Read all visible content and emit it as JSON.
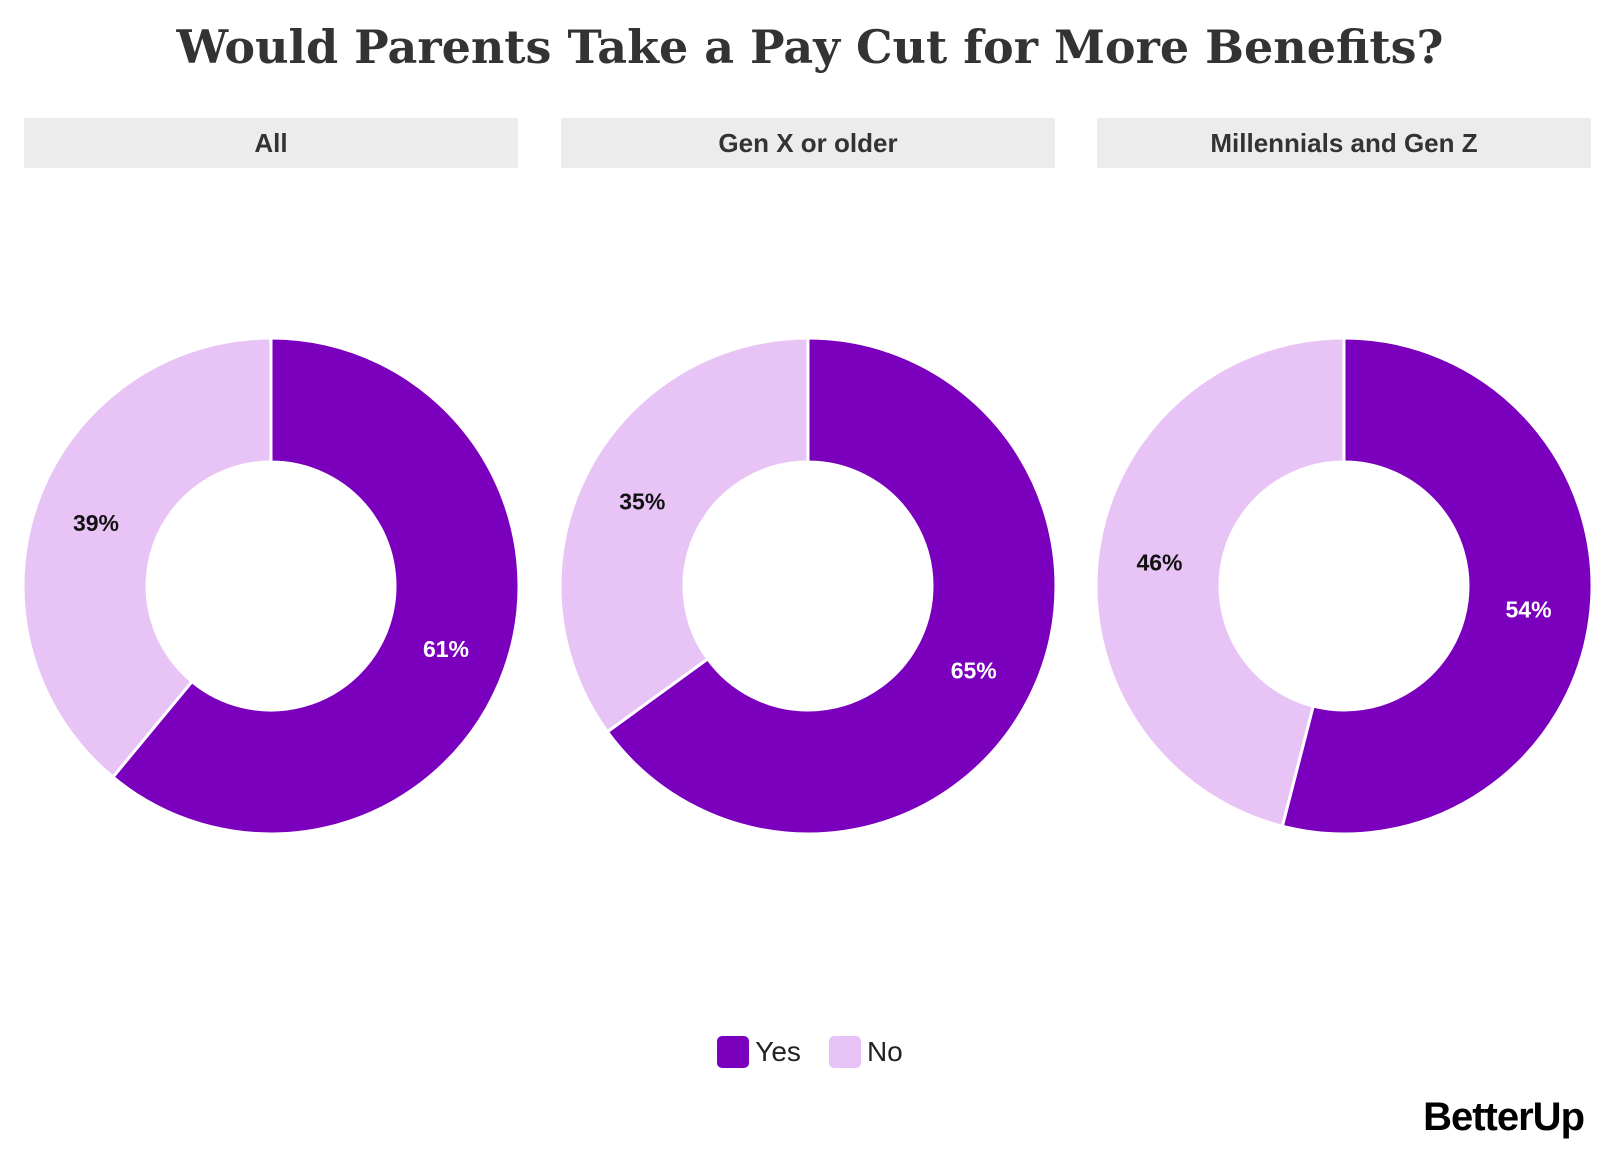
{
  "chart_data": {
    "type": "pie",
    "variant": "donut",
    "title": "Would Parents Take a Pay Cut for More Benefits?",
    "categories": [
      "Yes",
      "No"
    ],
    "colors": {
      "Yes": "#7a00be",
      "No": "#e8c3f5"
    },
    "panels": [
      {
        "label": "All",
        "values": [
          61,
          39
        ],
        "data_labels": [
          "61%",
          "39%"
        ]
      },
      {
        "label": "Gen X or older",
        "values": [
          65,
          35
        ],
        "data_labels": [
          "65%",
          "35%"
        ]
      },
      {
        "label": "Millennials and Gen Z",
        "values": [
          54,
          46
        ],
        "data_labels": [
          "54%",
          "46%"
        ]
      }
    ],
    "legend": {
      "position": "bottom",
      "entries": [
        "Yes",
        "No"
      ]
    }
  },
  "branding": {
    "logo": "BetterUp"
  }
}
